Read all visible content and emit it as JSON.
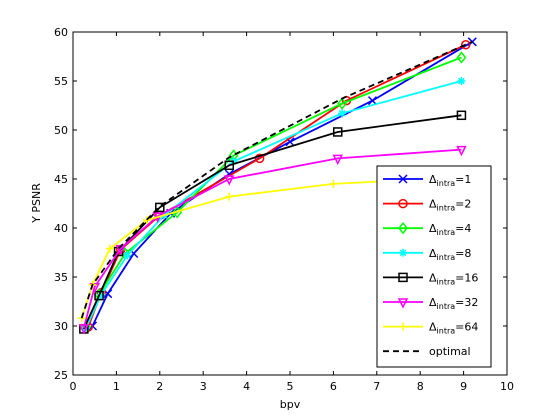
{
  "chart_data": {
    "type": "line",
    "xlabel": "bpv",
    "ylabel": "Y PSNR",
    "xlim": [
      0,
      10
    ],
    "ylim": [
      25,
      60
    ],
    "xticks": [
      0,
      1,
      2,
      3,
      4,
      5,
      6,
      7,
      8,
      9,
      10
    ],
    "yticks": [
      25,
      30,
      35,
      40,
      45,
      50,
      55,
      60
    ],
    "grid": false,
    "legend_position": "bottom-right",
    "series": [
      {
        "name": "Δintra=1",
        "legend_main": "Δ",
        "legend_sub": "intra",
        "legend_suffix": "=1",
        "color": "#0000ff",
        "marker": "x",
        "dashed": false,
        "x": [
          0.45,
          0.8,
          1.4,
          2.25,
          3.6,
          5.0,
          6.9,
          9.2
        ],
        "y": [
          30.0,
          33.3,
          37.4,
          41.5,
          45.5,
          48.8,
          53.0,
          59.0
        ]
      },
      {
        "name": "Δintra=2",
        "legend_main": "Δ",
        "legend_sub": "intra",
        "legend_suffix": "=2",
        "color": "#ff0000",
        "marker": "circle",
        "dashed": false,
        "x": [
          0.35,
          0.65,
          1.1,
          2.0,
          4.3,
          6.3,
          9.05
        ],
        "y": [
          29.9,
          33.4,
          37.8,
          41.3,
          47.1,
          53.0,
          58.7
        ]
      },
      {
        "name": "Δintra=4",
        "legend_main": "Δ",
        "legend_sub": "intra",
        "legend_suffix": "=4",
        "color": "#00ff00",
        "marker": "diamond",
        "dashed": false,
        "x": [
          0.3,
          0.6,
          1.2,
          2.4,
          3.7,
          6.2,
          8.95
        ],
        "y": [
          29.9,
          33.2,
          37.4,
          41.6,
          47.4,
          52.7,
          57.4
        ]
      },
      {
        "name": "Δintra=8",
        "legend_main": "Δ",
        "legend_sub": "intra",
        "legend_suffix": "=8",
        "color": "#00ffff",
        "marker": "star",
        "dashed": false,
        "x": [
          0.3,
          0.65,
          1.25,
          2.1,
          3.7,
          6.2,
          8.95
        ],
        "y": [
          29.8,
          33.2,
          37.2,
          41.3,
          46.8,
          51.7,
          55.0
        ]
      },
      {
        "name": "Δintra=16",
        "legend_main": "Δ",
        "legend_sub": "intra",
        "legend_suffix": "=16",
        "color": "#000000",
        "marker": "square",
        "dashed": false,
        "x": [
          0.25,
          0.6,
          1.05,
          2.0,
          3.6,
          6.1,
          8.95
        ],
        "y": [
          29.7,
          33.1,
          37.6,
          42.1,
          46.4,
          49.8,
          51.5
        ]
      },
      {
        "name": "Δintra=32",
        "legend_main": "Δ",
        "legend_sub": "intra",
        "legend_suffix": "=32",
        "color": "#ff00ff",
        "marker": "triangle-down",
        "dashed": false,
        "x": [
          0.25,
          0.5,
          1.1,
          1.95,
          3.6,
          6.1,
          8.95
        ],
        "y": [
          29.8,
          34.0,
          37.9,
          41.2,
          45.0,
          47.1,
          48.0
        ]
      },
      {
        "name": "Δintra=64",
        "legend_main": "Δ",
        "legend_sub": "intra",
        "legend_suffix": "=64",
        "color": "#ffff00",
        "marker": "plus",
        "dashed": false,
        "x": [
          0.2,
          0.45,
          0.85,
          1.7,
          3.6,
          6.0,
          7.3
        ],
        "y": [
          30.8,
          34.2,
          37.9,
          40.8,
          43.2,
          44.5,
          44.8
        ]
      },
      {
        "name": "optimal",
        "legend_main": "optimal",
        "legend_sub": "",
        "legend_suffix": "",
        "color": "#000000",
        "marker": "none",
        "dashed": true,
        "x": [
          0.2,
          0.45,
          1.05,
          2.0,
          3.6,
          6.2,
          9.2
        ],
        "y": [
          30.8,
          34.2,
          37.9,
          42.2,
          47.2,
          53.2,
          59.0
        ]
      }
    ]
  }
}
